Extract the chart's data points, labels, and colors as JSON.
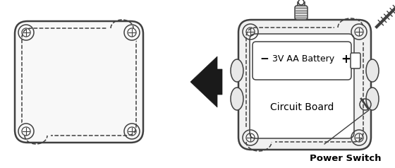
{
  "fig_width": 5.6,
  "fig_height": 2.38,
  "dpi": 100,
  "bg_color": "#ffffff",
  "lc": "#404040",
  "arrow_color": "#1a1a1a",
  "text_battery": "- 3V AA Battery +",
  "text_circuit": "Circuit Board",
  "text_power": "Power Switch"
}
